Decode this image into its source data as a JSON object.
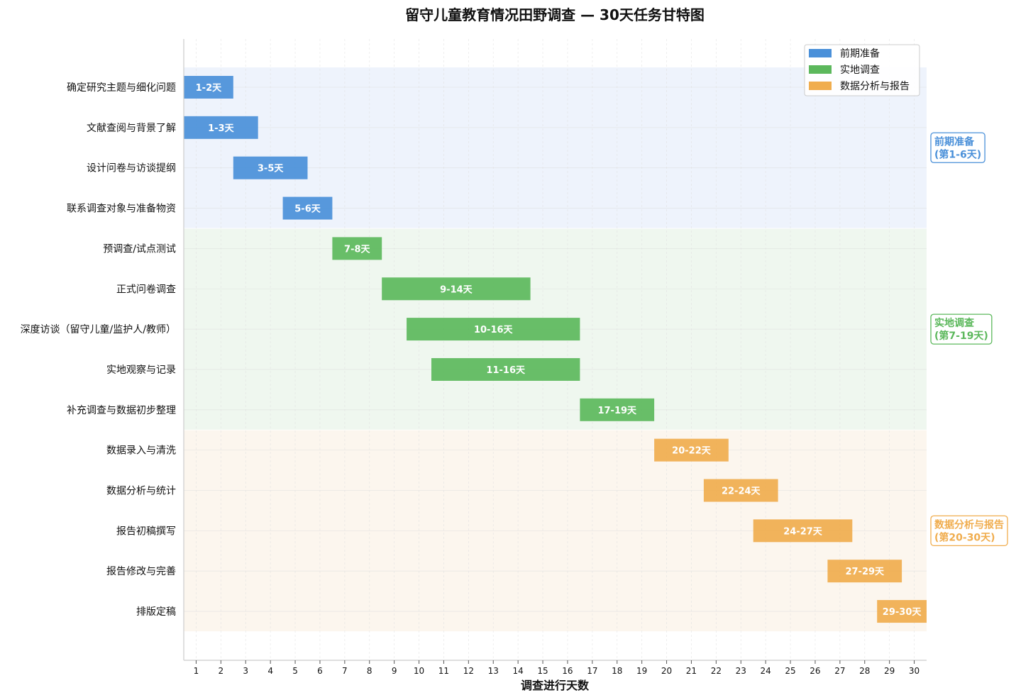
{
  "chart_data": {
    "type": "bar",
    "orientation": "horizontal-gantt",
    "title": "留守儿童教育情况田野调查 — 30天任务甘特图",
    "xlabel": "调查进行天数",
    "xlim": [
      0.5,
      30.5
    ],
    "x_ticks": [
      "1",
      "2",
      "3",
      "4",
      "5",
      "6",
      "7",
      "8",
      "9",
      "10",
      "11",
      "12",
      "13",
      "14",
      "15",
      "16",
      "17",
      "18",
      "19",
      "20",
      "21",
      "22",
      "23",
      "24",
      "25",
      "26",
      "27",
      "28",
      "29",
      "30"
    ],
    "grid": true,
    "legend_position": "top-right",
    "legend": [
      {
        "name": "前期准备",
        "color": "#4a90d9"
      },
      {
        "name": "实地调查",
        "color": "#5cb85c"
      },
      {
        "name": "数据分析与报告",
        "color": "#f0ad4e"
      }
    ],
    "phases": [
      {
        "label_line1": "前期准备",
        "label_line2": "(第1-6天)",
        "color": "#4a90d9",
        "bg": "#eef3fc",
        "first_task": 0,
        "last_task": 3
      },
      {
        "label_line1": "实地调查",
        "label_line2": "(第7-19天)",
        "color": "#5cb85c",
        "bg": "#eff7ef",
        "first_task": 4,
        "last_task": 8
      },
      {
        "label_line1": "数据分析与报告",
        "label_line2": "(第20-30天)",
        "color": "#f0ad4e",
        "bg": "#fcf6ee",
        "first_task": 9,
        "last_task": 13
      }
    ],
    "tasks": [
      {
        "name": "确定研究主题与细化问题",
        "start": 1,
        "end": 2,
        "label": "1-2天",
        "phase": 0
      },
      {
        "name": "文献查阅与背景了解",
        "start": 1,
        "end": 3,
        "label": "1-3天",
        "phase": 0
      },
      {
        "name": "设计问卷与访谈提纲",
        "start": 3,
        "end": 5,
        "label": "3-5天",
        "phase": 0
      },
      {
        "name": "联系调查对象与准备物资",
        "start": 5,
        "end": 6,
        "label": "5-6天",
        "phase": 0
      },
      {
        "name": "预调查/试点测试",
        "start": 7,
        "end": 8,
        "label": "7-8天",
        "phase": 1
      },
      {
        "name": "正式问卷调查",
        "start": 9,
        "end": 14,
        "label": "9-14天",
        "phase": 1
      },
      {
        "name": "深度访谈（留守儿童/监护人/教师）",
        "start": 10,
        "end": 16,
        "label": "10-16天",
        "phase": 1
      },
      {
        "name": "实地观察与记录",
        "start": 11,
        "end": 16,
        "label": "11-16天",
        "phase": 1
      },
      {
        "name": "补充调查与数据初步整理",
        "start": 17,
        "end": 19,
        "label": "17-19天",
        "phase": 1
      },
      {
        "name": "数据录入与清洗",
        "start": 20,
        "end": 22,
        "label": "20-22天",
        "phase": 2
      },
      {
        "name": "数据分析与统计",
        "start": 22,
        "end": 24,
        "label": "22-24天",
        "phase": 2
      },
      {
        "name": "报告初稿撰写",
        "start": 24,
        "end": 27,
        "label": "24-27天",
        "phase": 2
      },
      {
        "name": "报告修改与完善",
        "start": 27,
        "end": 29,
        "label": "27-29天",
        "phase": 2
      },
      {
        "name": "排版定稿",
        "start": 29,
        "end": 30,
        "label": "29-30天",
        "phase": 2
      }
    ]
  }
}
